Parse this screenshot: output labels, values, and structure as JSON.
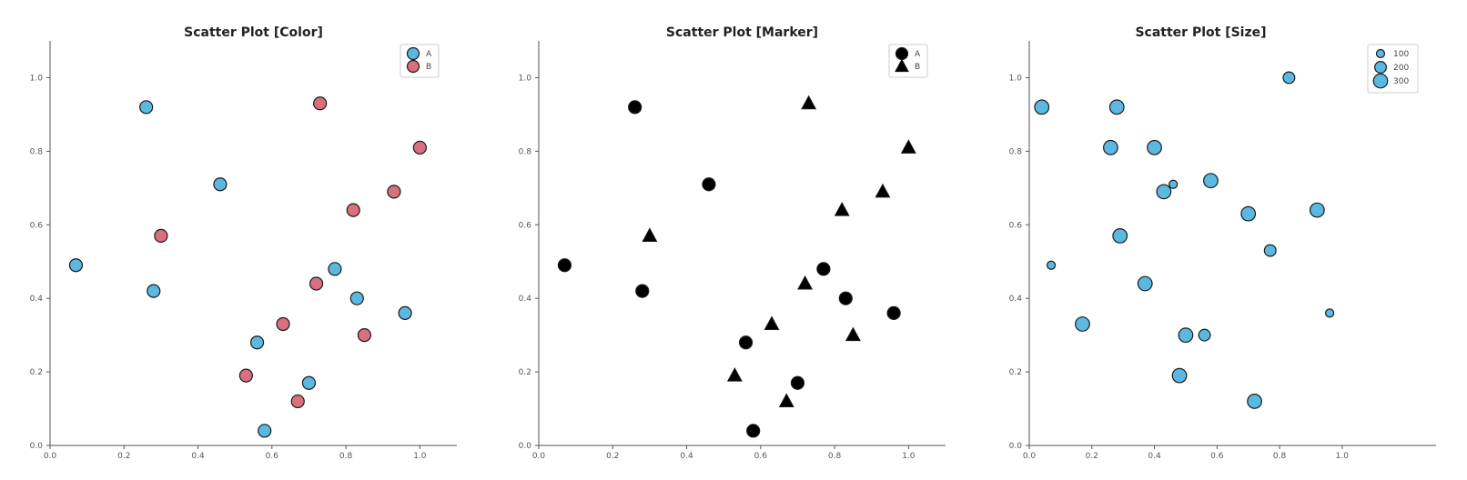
{
  "colors": {
    "A": "#5bb8e0",
    "B": "#d9707f",
    "black": "#000000",
    "edge": "#1a1a1a"
  },
  "chart_data": [
    {
      "type": "scatter",
      "title": "Scatter Plot [Color]",
      "encoding": "color",
      "xlim": [
        0,
        1.1
      ],
      "ylim": [
        0,
        1.1
      ],
      "xticks": [
        "0.0",
        "0.2",
        "0.4",
        "0.6",
        "0.8",
        "1.0"
      ],
      "yticks": [
        "0.0",
        "0.2",
        "0.4",
        "0.6",
        "0.8",
        "1.0"
      ],
      "legend": {
        "placement": "top-right",
        "entries": [
          "A",
          "B"
        ]
      },
      "series": [
        {
          "name": "A",
          "color": "#5bb8e0",
          "marker": "circle",
          "x": [
            0.07,
            0.26,
            0.46,
            0.28,
            0.56,
            0.58,
            0.7,
            0.77,
            0.83,
            0.96
          ],
          "y": [
            0.49,
            0.92,
            0.71,
            0.42,
            0.28,
            0.04,
            0.17,
            0.48,
            0.4,
            0.36
          ]
        },
        {
          "name": "B",
          "color": "#d9707f",
          "marker": "circle",
          "x": [
            0.3,
            0.53,
            0.63,
            0.67,
            0.72,
            0.73,
            0.82,
            0.85,
            0.93,
            1.0
          ],
          "y": [
            0.57,
            0.19,
            0.33,
            0.12,
            0.44,
            0.93,
            0.64,
            0.3,
            0.69,
            0.81
          ]
        }
      ]
    },
    {
      "type": "scatter",
      "title": "Scatter Plot [Marker]",
      "encoding": "marker",
      "xlim": [
        0,
        1.1
      ],
      "ylim": [
        0,
        1.1
      ],
      "xticks": [
        "0.0",
        "0.2",
        "0.4",
        "0.6",
        "0.8",
        "1.0"
      ],
      "yticks": [
        "0.0",
        "0.2",
        "0.4",
        "0.6",
        "0.8",
        "1.0"
      ],
      "legend": {
        "placement": "top-right",
        "entries": [
          "A",
          "B"
        ]
      },
      "series": [
        {
          "name": "A",
          "color": "#000000",
          "marker": "circle",
          "x": [
            0.07,
            0.26,
            0.46,
            0.28,
            0.56,
            0.58,
            0.7,
            0.77,
            0.83,
            0.96
          ],
          "y": [
            0.49,
            0.92,
            0.71,
            0.42,
            0.28,
            0.04,
            0.17,
            0.48,
            0.4,
            0.36
          ]
        },
        {
          "name": "B",
          "color": "#000000",
          "marker": "triangle",
          "x": [
            0.3,
            0.53,
            0.63,
            0.67,
            0.72,
            0.73,
            0.82,
            0.85,
            0.93,
            1.0
          ],
          "y": [
            0.57,
            0.19,
            0.33,
            0.12,
            0.44,
            0.93,
            0.64,
            0.3,
            0.69,
            0.81
          ]
        }
      ]
    },
    {
      "type": "scatter",
      "title": "Scatter Plot [Size]",
      "encoding": "size",
      "xlim": [
        0,
        1.3
      ],
      "ylim": [
        0,
        1.1
      ],
      "xticks": [
        "0.0",
        "0.2",
        "0.4",
        "0.6",
        "0.8",
        "1.0"
      ],
      "yticks": [
        "0.0",
        "0.2",
        "0.4",
        "0.6",
        "0.8",
        "1.0"
      ],
      "legend": {
        "placement": "top-right",
        "entries": [
          "100",
          "200",
          "300"
        ],
        "sizes": [
          100,
          200,
          300
        ]
      },
      "series": [
        {
          "name": "",
          "color": "#5bb8e0",
          "marker": "circle",
          "x": [
            0.04,
            0.07,
            0.17,
            0.26,
            0.28,
            0.29,
            0.37,
            0.4,
            0.43,
            0.46,
            0.48,
            0.5,
            0.56,
            0.58,
            0.7,
            0.72,
            0.77,
            0.83,
            0.92,
            0.96
          ],
          "y": [
            0.92,
            0.49,
            0.33,
            0.81,
            0.92,
            0.57,
            0.44,
            0.81,
            0.69,
            0.71,
            0.19,
            0.3,
            0.3,
            0.72,
            0.63,
            0.12,
            0.53,
            1.0,
            0.64,
            0.36
          ],
          "sizes": [
            300,
            100,
            300,
            300,
            300,
            300,
            300,
            300,
            300,
            100,
            300,
            300,
            200,
            300,
            300,
            300,
            200,
            200,
            300,
            100
          ]
        }
      ]
    }
  ]
}
